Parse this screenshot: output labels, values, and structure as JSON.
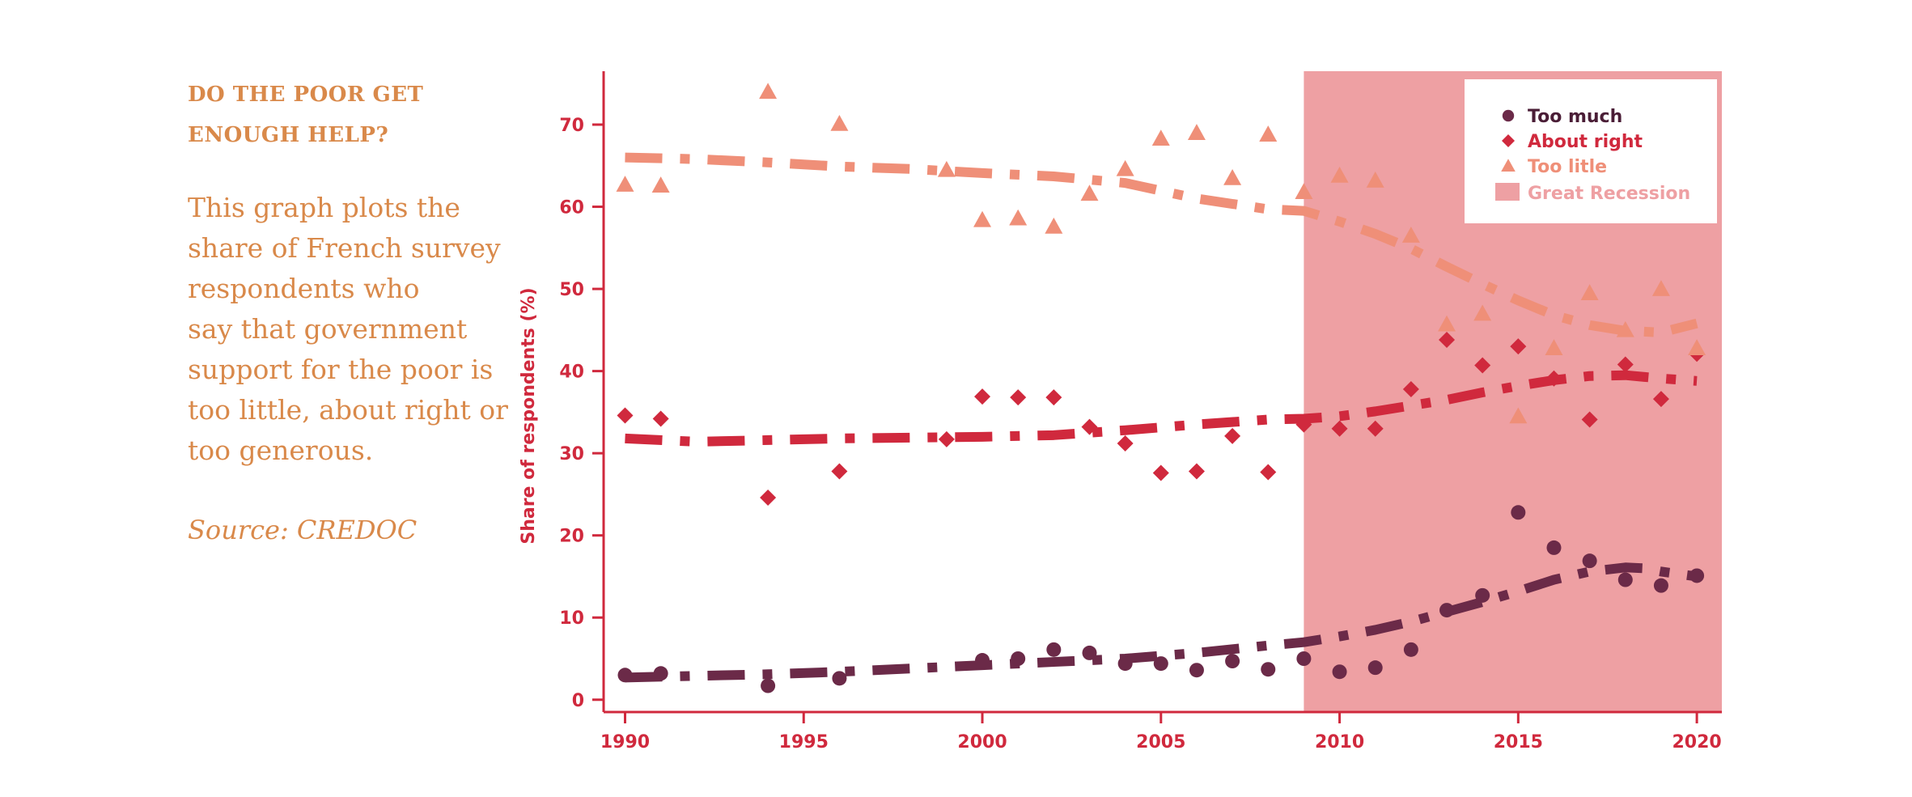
{
  "sidebar": {
    "title_line1": "DO THE POOR GET",
    "title_line2": "ENOUGH HELP?",
    "desc_lines": [
      "This graph plots the",
      "share of French survey",
      "respondents who",
      "say that government",
      "support for the poor is",
      "too little, about right or",
      "too generous."
    ],
    "source": "Source: CREDOC"
  },
  "chart_data": {
    "type": "scatter",
    "xlabel": "",
    "ylabel": "Share of respondents (%)",
    "xlim": [
      1989.4,
      2020.7
    ],
    "ylim": [
      -1.5,
      76.5
    ],
    "xticks": [
      1990,
      1995,
      2000,
      2005,
      2010,
      2015,
      2020
    ],
    "yticks": [
      0,
      10,
      20,
      30,
      40,
      50,
      60,
      70
    ],
    "legend_position": "top-right",
    "shaded_region": {
      "name": "Great Recession",
      "x": [
        2009,
        2020.7
      ],
      "color": "#eea0a3"
    },
    "colors": {
      "too_much": "#6b2a48",
      "about_right": "#d0293d",
      "too_little": "#ef8f78",
      "axis": "#d0293d"
    },
    "series": [
      {
        "name": "Too much",
        "marker": "circle",
        "color": "#6b2a48",
        "x": [
          1990,
          1991,
          1994,
          1996,
          2000,
          2001,
          2002,
          2003,
          2004,
          2005,
          2006,
          2007,
          2008,
          2009,
          2010,
          2011,
          2012,
          2013,
          2014,
          2015,
          2016,
          2017,
          2018,
          2019,
          2020
        ],
        "y": [
          3.0,
          3.2,
          1.7,
          2.6,
          4.8,
          5.0,
          6.1,
          5.7,
          4.4,
          4.4,
          3.6,
          4.7,
          3.7,
          5.0,
          3.4,
          3.9,
          6.1,
          10.9,
          12.7,
          22.8,
          18.5,
          16.9,
          14.6,
          13.9,
          15.1
        ],
        "trend": {
          "x": [
            1990,
            1992,
            1994,
            1996,
            1998,
            2000,
            2002,
            2004,
            2006,
            2008,
            2009,
            2010,
            2011,
            2012,
            2013,
            2014,
            2015,
            2016,
            2017,
            2018,
            2018.5,
            2019,
            2020
          ],
          "y": [
            2.7,
            2.9,
            3.1,
            3.4,
            3.8,
            4.2,
            4.6,
            5.0,
            5.7,
            6.6,
            7.0,
            7.7,
            8.5,
            9.5,
            10.7,
            11.9,
            13.2,
            14.6,
            15.6,
            16.1,
            16.0,
            15.6,
            15.0
          ]
        }
      },
      {
        "name": "About right",
        "marker": "diamond",
        "color": "#d0293d",
        "x": [
          1990,
          1991,
          1994,
          1996,
          1999,
          2000,
          2001,
          2002,
          2003,
          2004,
          2005,
          2006,
          2007,
          2008,
          2009,
          2010,
          2011,
          2012,
          2013,
          2014,
          2015,
          2016,
          2017,
          2018,
          2019,
          2020
        ],
        "y": [
          34.6,
          34.2,
          24.6,
          27.8,
          31.7,
          36.9,
          36.8,
          36.8,
          33.2,
          31.2,
          27.6,
          27.8,
          32.1,
          27.7,
          33.5,
          33.0,
          33.0,
          37.8,
          43.8,
          40.7,
          43.0,
          39.1,
          34.1,
          40.8,
          36.6,
          42.1
        ],
        "trend": {
          "x": [
            1990,
            1992,
            1994,
            1996,
            1998,
            2000,
            2002,
            2004,
            2006,
            2008,
            2009,
            2010,
            2011,
            2012,
            2013,
            2014,
            2015,
            2016,
            2017,
            2018,
            2019,
            2020
          ],
          "y": [
            31.8,
            31.4,
            31.6,
            31.8,
            31.9,
            32.0,
            32.2,
            32.8,
            33.5,
            34.1,
            34.2,
            34.5,
            35.1,
            35.8,
            36.5,
            37.4,
            38.2,
            38.9,
            39.4,
            39.5,
            39.1,
            38.8
          ]
        }
      },
      {
        "name": "Too litle",
        "marker": "triangle",
        "color": "#ef8f78",
        "x": [
          1990,
          1991,
          1994,
          1996,
          1999,
          2000,
          2001,
          2002,
          2003,
          2004,
          2005,
          2006,
          2007,
          2008,
          2009,
          2010,
          2011,
          2012,
          2013,
          2014,
          2015,
          2016,
          2017,
          2018,
          2019,
          2020
        ],
        "y": [
          62.7,
          62.6,
          74.0,
          70.1,
          64.5,
          58.4,
          58.6,
          57.6,
          61.6,
          64.6,
          68.3,
          69.0,
          63.5,
          68.8,
          61.8,
          63.8,
          63.2,
          56.5,
          45.7,
          47.0,
          34.5,
          42.8,
          49.5,
          45.0,
          50.0,
          42.8
        ],
        "trend": {
          "x": [
            1990,
            1992,
            1994,
            1996,
            1998,
            2000,
            2002,
            2004,
            2006,
            2008,
            2009,
            2010,
            2011,
            2012,
            2013,
            2014,
            2015,
            2016,
            2017,
            2018,
            2019,
            2020
          ],
          "y": [
            66.0,
            65.8,
            65.4,
            64.9,
            64.6,
            64.1,
            63.7,
            62.9,
            61.0,
            59.7,
            59.5,
            58.2,
            56.7,
            54.9,
            52.7,
            50.6,
            48.6,
            46.8,
            45.6,
            44.9,
            44.7,
            45.8
          ]
        }
      }
    ]
  }
}
